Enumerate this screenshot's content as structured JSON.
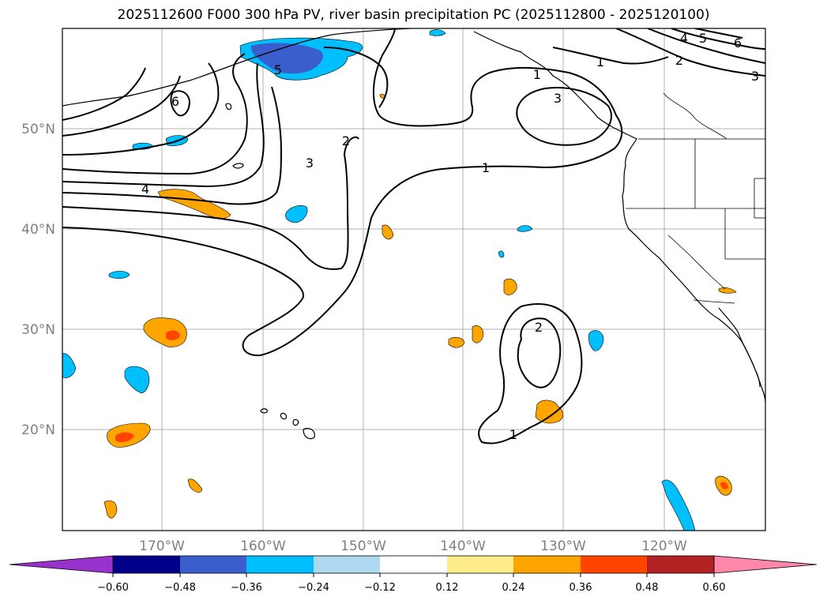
{
  "title": "2025112600 F000 300 hPa PV, river basin precipitation PC (2025112800 - 2025120100)",
  "map": {
    "lat_labels": [
      "50°N",
      "40°N",
      "30°N",
      "20°N"
    ],
    "lon_labels": [
      "170°W",
      "160°W",
      "150°W",
      "140°W",
      "130°W",
      "120°W"
    ],
    "contour_labels": [
      "1",
      "1",
      "1",
      "2",
      "2",
      "3",
      "3",
      "4",
      "4",
      "5",
      "5",
      "6",
      "6",
      "1",
      "2",
      "3"
    ]
  },
  "colorbar": {
    "tick_labels": [
      "−0.60",
      "−0.48",
      "−0.36",
      "−0.24",
      "−0.12",
      "0.12",
      "0.24",
      "0.36",
      "0.48",
      "0.60"
    ],
    "colors": [
      "#9932cc",
      "#00008b",
      "#3a5fcd",
      "#00bfff",
      "#add8f0",
      "#ffffff",
      "#ffec8b",
      "#ffa500",
      "#ff4500",
      "#b22222",
      "#ff88aa"
    ]
  },
  "fill_colors": {
    "light_blue": "#00bfff",
    "medium_blue": "#3a5fcd",
    "orange": "#ffa500",
    "red_orange": "#ff4500"
  }
}
